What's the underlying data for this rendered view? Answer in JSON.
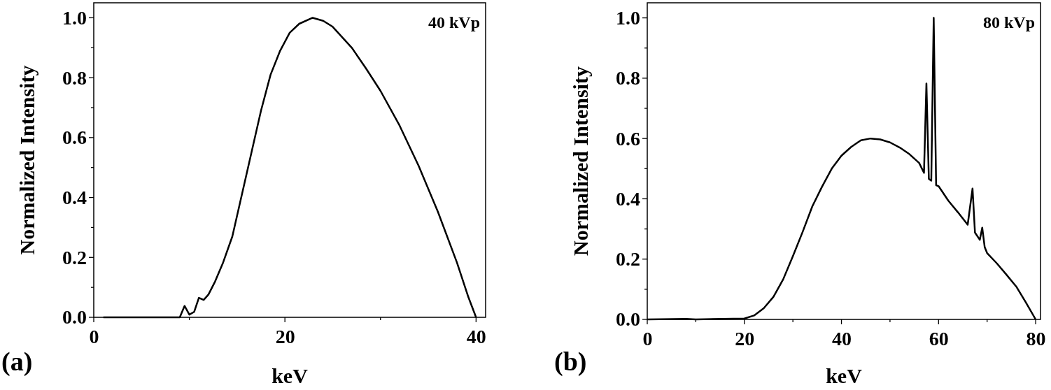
{
  "chart_data": [
    {
      "type": "line",
      "xlabel": "keV",
      "ylabel": "Normalized Intensity",
      "annotations": [
        "40 kVp",
        "(a)"
      ],
      "xlim": [
        0,
        41
      ],
      "ylim": [
        0,
        1.05
      ],
      "xticks": [
        0,
        {
          "value": 10,
          "label": null
        },
        20,
        {
          "value": 30,
          "label": null
        },
        40
      ],
      "yticks": [
        {
          "value": 0,
          "label": "0.0"
        },
        {
          "value": 0.1,
          "label": null
        },
        0.2,
        {
          "value": 0.3,
          "label": null
        },
        0.4,
        {
          "value": 0.5,
          "label": null
        },
        0.6,
        {
          "value": 0.7,
          "label": null
        },
        0.8,
        {
          "value": 0.9,
          "label": null
        },
        {
          "value": 1,
          "label": "1.0"
        }
      ],
      "grid": false,
      "marker": "none",
      "line_style": "solid",
      "series": [
        {
          "color": "#000000",
          "x": [
            1,
            9,
            9.5,
            10,
            10.5,
            11,
            11.5,
            12,
            12.7,
            13.5,
            14.5,
            15.5,
            16.5,
            17.5,
            18.5,
            19.5,
            20.5,
            21.5,
            22.9,
            24,
            25,
            26,
            27,
            28.5,
            30,
            32,
            34,
            36,
            38,
            39.2,
            40
          ],
          "values": [
            0,
            0,
            0.038,
            0.009,
            0.018,
            0.065,
            0.058,
            0.076,
            0.12,
            0.18,
            0.27,
            0.41,
            0.55,
            0.69,
            0.81,
            0.89,
            0.95,
            0.98,
            1.0,
            0.99,
            0.97,
            0.935,
            0.9,
            0.83,
            0.756,
            0.64,
            0.505,
            0.353,
            0.183,
            0.067,
            0
          ]
        }
      ]
    },
    {
      "type": "line",
      "xlabel": "keV",
      "ylabel": "Normalized Intensity",
      "annotations": [
        "80 kVp",
        "(b)"
      ],
      "xlim": [
        0,
        81
      ],
      "ylim": [
        0,
        1.05
      ],
      "xticks": [
        0,
        {
          "value": 10,
          "label": null
        },
        20,
        {
          "value": 30,
          "label": null
        },
        40,
        {
          "value": 50,
          "label": null
        },
        60,
        {
          "value": 70,
          "label": null
        },
        80
      ],
      "yticks": [
        {
          "value": 0,
          "label": "0.0"
        },
        {
          "value": 0.1,
          "label": null
        },
        0.2,
        {
          "value": 0.3,
          "label": null
        },
        0.4,
        {
          "value": 0.5,
          "label": null
        },
        0.6,
        {
          "value": 0.7,
          "label": null
        },
        0.8,
        {
          "value": 0.9,
          "label": null
        },
        {
          "value": 1,
          "label": "1.0"
        }
      ],
      "grid": false,
      "marker": "none",
      "line_style": "solid",
      "series": [
        {
          "color": "#000000",
          "x": [
            0,
            8,
            10,
            20,
            22,
            24,
            26,
            28,
            30,
            32,
            34,
            36,
            38,
            40,
            42,
            44,
            46,
            48,
            50,
            52,
            54,
            56,
            57,
            57.5,
            58,
            58.5,
            59,
            59.5,
            60,
            62,
            64,
            66,
            67,
            67.5,
            68.5,
            69,
            69.5,
            70,
            72,
            74,
            76,
            78,
            80
          ],
          "values": [
            0,
            0.002,
            0,
            0.003,
            0.013,
            0.037,
            0.075,
            0.133,
            0.21,
            0.29,
            0.375,
            0.44,
            0.5,
            0.543,
            0.572,
            0.594,
            0.6,
            0.597,
            0.587,
            0.57,
            0.548,
            0.519,
            0.486,
            0.782,
            0.466,
            0.46,
            1.0,
            0.445,
            0.442,
            0.394,
            0.355,
            0.314,
            0.434,
            0.288,
            0.264,
            0.304,
            0.24,
            0.22,
            0.186,
            0.148,
            0.109,
            0.056,
            0
          ]
        }
      ]
    }
  ]
}
